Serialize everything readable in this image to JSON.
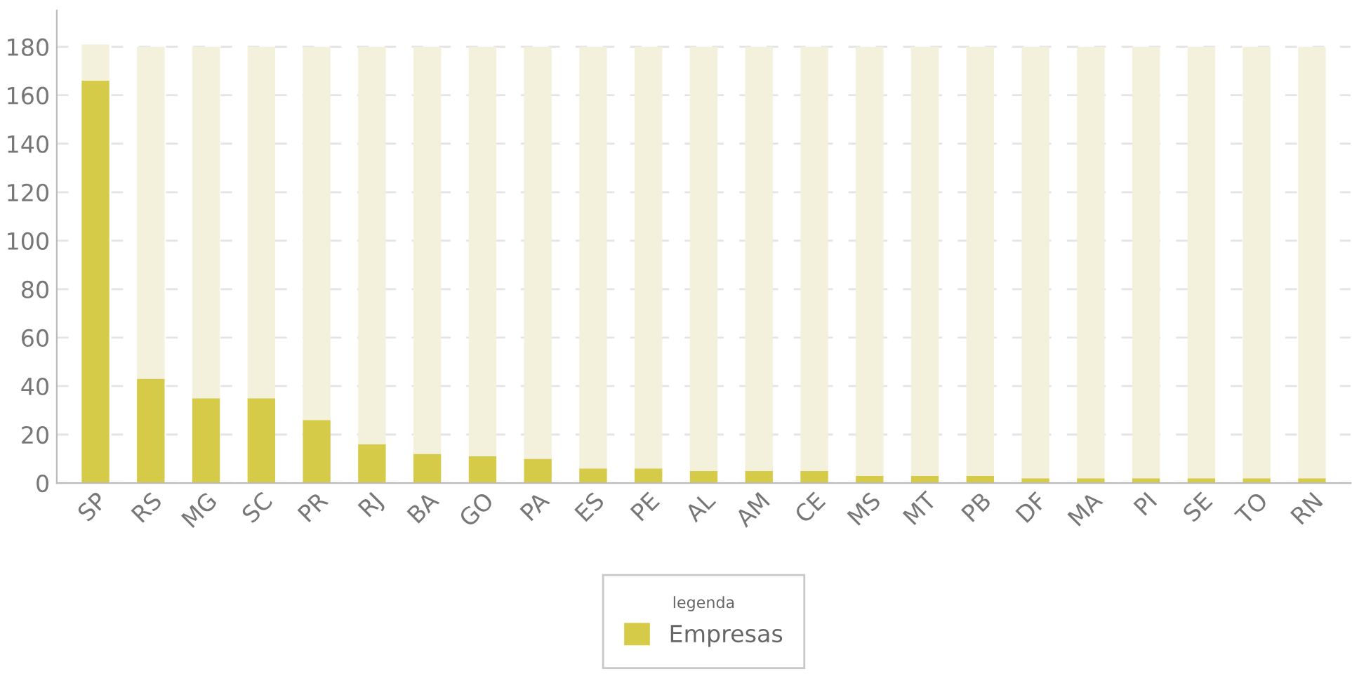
{
  "chart_data": {
    "type": "bar",
    "stacked": true,
    "categories": [
      "SP",
      "RS",
      "MG",
      "SC",
      "PR",
      "RJ",
      "BA",
      "GO",
      "PA",
      "ES",
      "PE",
      "AL",
      "AM",
      "CE",
      "MS",
      "MT",
      "PB",
      "DF",
      "MA",
      "PI",
      "SE",
      "TO",
      "RN"
    ],
    "series": [
      {
        "name": "Empresas",
        "color": "#d6cb48",
        "values": [
          166,
          43,
          35,
          35,
          26,
          16,
          12,
          11,
          10,
          6,
          6,
          5,
          5,
          5,
          3,
          3,
          3,
          2,
          2,
          2,
          2,
          2,
          2
        ]
      },
      {
        "color": "#f3f0dc",
        "values": [
          15,
          137,
          145,
          145,
          154,
          164,
          168,
          169,
          170,
          174,
          174,
          175,
          175,
          175,
          177,
          177,
          177,
          178,
          178,
          178,
          178,
          178,
          178
        ]
      }
    ],
    "ylim": [
      0,
      195
    ],
    "yticks": [
      0,
      20,
      40,
      60,
      80,
      100,
      120,
      140,
      160,
      180
    ],
    "grid": "y",
    "legend": "bottom",
    "legend_title": "legenda"
  }
}
